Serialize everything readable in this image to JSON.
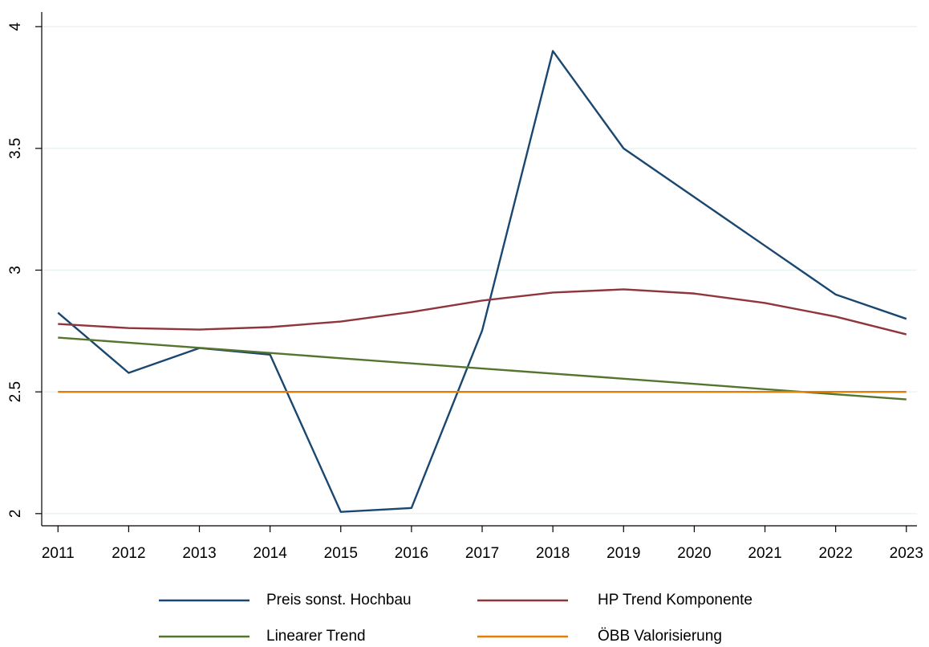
{
  "chart_data": {
    "type": "line",
    "x": [
      2011,
      2012,
      2013,
      2014,
      2015,
      2016,
      2017,
      2018,
      2019,
      2020,
      2021,
      2022,
      2023
    ],
    "series": [
      {
        "name": "Preis sonst. Hochbau",
        "color": "#1a476f",
        "values": [
          2.825,
          2.578,
          2.68,
          2.653,
          2.007,
          2.023,
          2.752,
          3.9,
          3.5,
          3.3,
          3.1,
          2.9,
          2.8
        ]
      },
      {
        "name": "HP Trend Komponente",
        "color": "#90353b",
        "values": [
          2.779,
          2.762,
          2.756,
          2.766,
          2.789,
          2.828,
          2.875,
          2.908,
          2.921,
          2.904,
          2.865,
          2.809,
          2.736
        ]
      },
      {
        "name": "Linearer Trend",
        "color": "#55752f",
        "values": [
          2.723,
          2.702,
          2.681,
          2.66,
          2.638,
          2.617,
          2.596,
          2.575,
          2.554,
          2.533,
          2.511,
          2.49,
          2.469
        ]
      },
      {
        "name": "ÖBB Valorisierung",
        "color": "#e37e00",
        "values": [
          2.5,
          2.5,
          2.5,
          2.5,
          2.5,
          2.5,
          2.5,
          2.5,
          2.5,
          2.5,
          2.5,
          2.5,
          2.5
        ]
      }
    ],
    "xlim": [
      2010.77,
      2023.15
    ],
    "xticks": [
      2011,
      2012,
      2013,
      2014,
      2015,
      2016,
      2017,
      2018,
      2019,
      2020,
      2021,
      2022,
      2023
    ],
    "ylim": [
      1.95,
      4.06
    ],
    "yticks": [
      2,
      2.5,
      3,
      3.5,
      4
    ],
    "grid": true,
    "legend": "bottom"
  }
}
